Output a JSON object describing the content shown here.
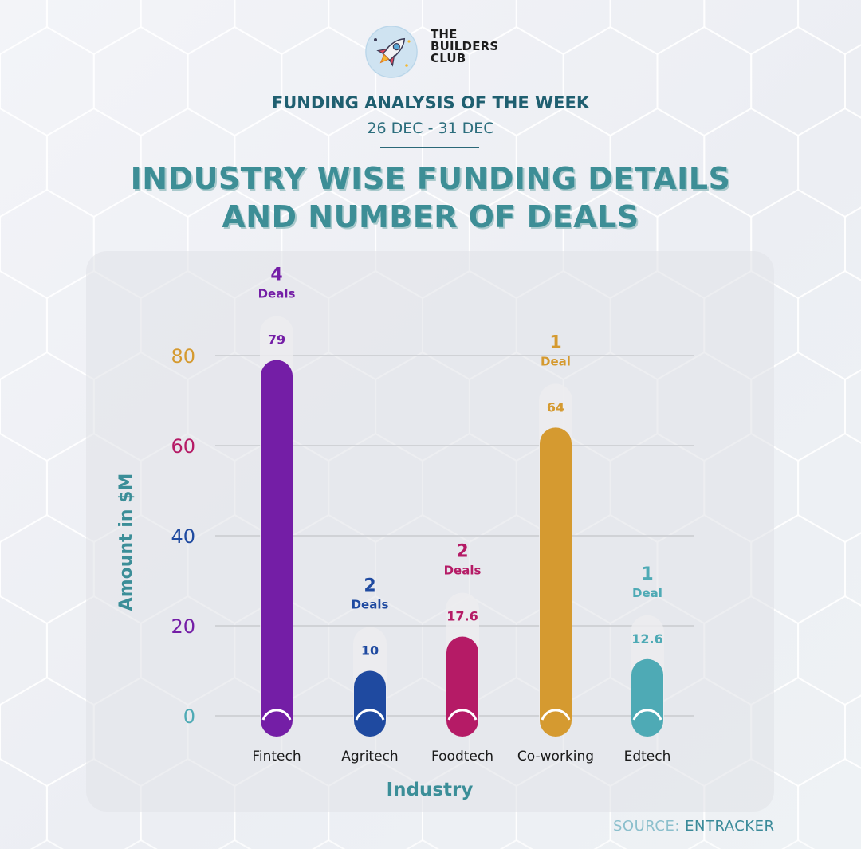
{
  "brand": {
    "line1": "THE",
    "line2": "BUILDERS",
    "line3": "CLUB"
  },
  "header": {
    "subtitle": "FUNDING ANALYSIS OF THE WEEK",
    "dates": "26 DEC - 31 DEC",
    "title_line1": "INDUSTRY WISE FUNDING DETAILS",
    "title_line2": "AND NUMBER OF DEALS"
  },
  "source": {
    "label": "SOURCE:",
    "value": "ENTRACKER"
  },
  "colors": {
    "fintech": "#741ea6",
    "agritech": "#1f4aa0",
    "foodtech": "#b51b66",
    "coworking": "#d59a30",
    "edtech": "#4eaab5",
    "axis_title": "#3b8e98",
    "title": "#3d8e96",
    "subtitle": "#1f5f70"
  },
  "chart_data": {
    "type": "bar",
    "title": "INDUSTRY WISE FUNDING DETAILS AND NUMBER OF DEALS",
    "xlabel": "Industry",
    "ylabel": "Amount in $M",
    "ylim": [
      0,
      80
    ],
    "yticks": [
      0,
      20,
      40,
      60,
      80
    ],
    "ytick_colors": [
      "#4eaab5",
      "#741ea6",
      "#1f4aa0",
      "#b51b66",
      "#d59a30"
    ],
    "grid": true,
    "categories": [
      "Fintech",
      "Agritech",
      "Foodtech",
      "Co-working",
      "Edtech"
    ],
    "values": [
      79,
      10,
      17.6,
      64,
      12.6
    ],
    "value_labels": [
      "79",
      "10",
      "17.6",
      "64",
      "12.6"
    ],
    "deals": [
      "4",
      "2",
      "2",
      "1",
      "1"
    ],
    "deal_labels": [
      "Deals",
      "Deals",
      "Deals",
      "Deal",
      "Deal"
    ],
    "bar_colors": [
      "#741ea6",
      "#1f4aa0",
      "#b51b66",
      "#d59a30",
      "#4eaab5"
    ]
  }
}
